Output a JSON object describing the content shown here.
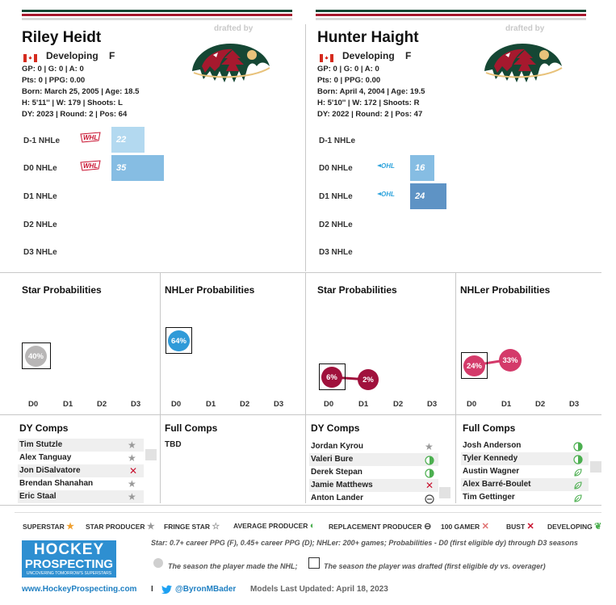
{
  "colors": {
    "wild_green": "#154734",
    "wild_red": "#a6192e",
    "bar_light": "#b3d9f0",
    "bar_mid": "#86bde3",
    "bar_dark": "#5e93c5",
    "star_grey": "#b8b6b6",
    "nhl_blue": "#2f9ad8",
    "star_red": "#a0113c",
    "nhl_pink": "#d43a6a"
  },
  "players": [
    {
      "name": "Riley Heidt",
      "drafted_by": "drafted by",
      "status": "Developing",
      "position": "F",
      "line1": "GP: 0 | G: 0 | A: 0",
      "line2": "Pts: 0 | PPG: 0.00",
      "line3": "Born: March 25, 2005 | Age: 18.5",
      "line4": "H: 5'11'' | W: 179 | Shoots: L",
      "line5": "DY: 2023 | Round: 2 | Pos: 64",
      "nhle": [
        {
          "label": "D-1 NHLe",
          "value": "22",
          "league": "WHL"
        },
        {
          "label": "D0 NHLe",
          "value": "35",
          "league": "WHL"
        },
        {
          "label": "D1 NHLe",
          "value": ""
        },
        {
          "label": "D2 NHLe",
          "value": ""
        },
        {
          "label": "D3 NHLe",
          "value": ""
        }
      ],
      "star_prob": {
        "title": "Star Probabilities",
        "d0": "40%"
      },
      "nhl_prob": {
        "title": "NHLer Probabilities",
        "d0": "64%"
      },
      "dy_comps_title": "DY Comps",
      "dy_comps": [
        {
          "name": "Tim Stutzle",
          "icon": "star-producer-icon"
        },
        {
          "name": "Alex Tanguay",
          "icon": "star-producer-icon"
        },
        {
          "name": "Jon DiSalvatore",
          "icon": "bust-icon"
        },
        {
          "name": "Brendan Shanahan",
          "icon": "star-producer-icon"
        },
        {
          "name": "Eric Staal",
          "icon": "star-producer-icon"
        }
      ],
      "full_comps_title": "Full Comps",
      "full_comps_tbd": "TBD"
    },
    {
      "name": "Hunter Haight",
      "drafted_by": "drafted by",
      "status": "Developing",
      "position": "F",
      "line1": "GP: 0 | G: 0 | A: 0",
      "line2": "Pts: 0 | PPG: 0.00",
      "line3": "Born: April 4, 2004 | Age: 19.5",
      "line4": "H: 5'10'' | W: 172 | Shoots: R",
      "line5": "DY: 2022 | Round: 2 | Pos: 47",
      "nhle": [
        {
          "label": "D-1 NHLe",
          "value": ""
        },
        {
          "label": "D0 NHLe",
          "value": "16",
          "league": "OHL"
        },
        {
          "label": "D1 NHLe",
          "value": "24",
          "league": "OHL"
        },
        {
          "label": "D2 NHLe",
          "value": ""
        },
        {
          "label": "D3 NHLe",
          "value": ""
        }
      ],
      "star_prob": {
        "title": "Star Probabilities",
        "d0": "6%",
        "d1": "2%"
      },
      "nhl_prob": {
        "title": "NHLer Probabilities",
        "d0": "24%",
        "d1": "33%"
      },
      "dy_comps_title": "DY Comps",
      "dy_comps": [
        {
          "name": "Jordan Kyrou",
          "icon": "star-producer-icon"
        },
        {
          "name": "Valeri Bure",
          "icon": "average-producer-icon"
        },
        {
          "name": "Derek Stepan",
          "icon": "average-producer-icon"
        },
        {
          "name": "Jamie Matthews",
          "icon": "bust-icon"
        },
        {
          "name": "Anton Lander",
          "icon": "replacement-producer-icon"
        }
      ],
      "full_comps_title": "Full Comps",
      "full_comps": [
        {
          "name": "Josh Anderson",
          "icon": "average-producer-icon"
        },
        {
          "name": "Tyler Kennedy",
          "icon": "average-producer-icon"
        },
        {
          "name": "Austin Wagner",
          "icon": "developing-icon"
        },
        {
          "name": "Alex Barré-Boulet",
          "icon": "developing-icon"
        },
        {
          "name": "Tim Gettinger",
          "icon": "developing-icon"
        }
      ]
    }
  ],
  "axis_labels": [
    "D0",
    "D1",
    "D2",
    "D3"
  ],
  "legend": [
    {
      "label": "SUPERSTAR",
      "icon": "superstar-icon"
    },
    {
      "label": "STAR PRODUCER",
      "icon": "star-producer-icon"
    },
    {
      "label": "FRINGE STAR",
      "icon": "fringe-star-icon"
    },
    {
      "label": "AVERAGE PRODUCER",
      "icon": "average-producer-icon"
    },
    {
      "label": "REPLACEMENT PRODUCER",
      "icon": "replacement-producer-icon"
    },
    {
      "label": "100 GAMER",
      "icon": "hundred-gamer-icon"
    },
    {
      "label": "BUST",
      "icon": "bust-icon"
    },
    {
      "label": "DEVELOPING",
      "icon": "developing-icon"
    }
  ],
  "footer": {
    "logo_line1": "HOCKEY",
    "logo_line2": "PROSPECTING",
    "logo_tagline": "UNCOVERING TOMORROW'S SUPERSTARS",
    "definition": "Star: 0.7+ career PPG (F), 0.45+ career PPG (D); NHLer: 200+ games; Probabilities - D0 (first eligible dy) through D3 seasons",
    "circle_note": "The season the player made the NHL;",
    "square_note": "The season the player was drafted (first eligible dy vs. overager)",
    "website": "www.HockeyProspecting.com",
    "separator": "I",
    "twitter": "@ByronMBader",
    "updated": "Models Last Updated: April 18, 2023"
  }
}
